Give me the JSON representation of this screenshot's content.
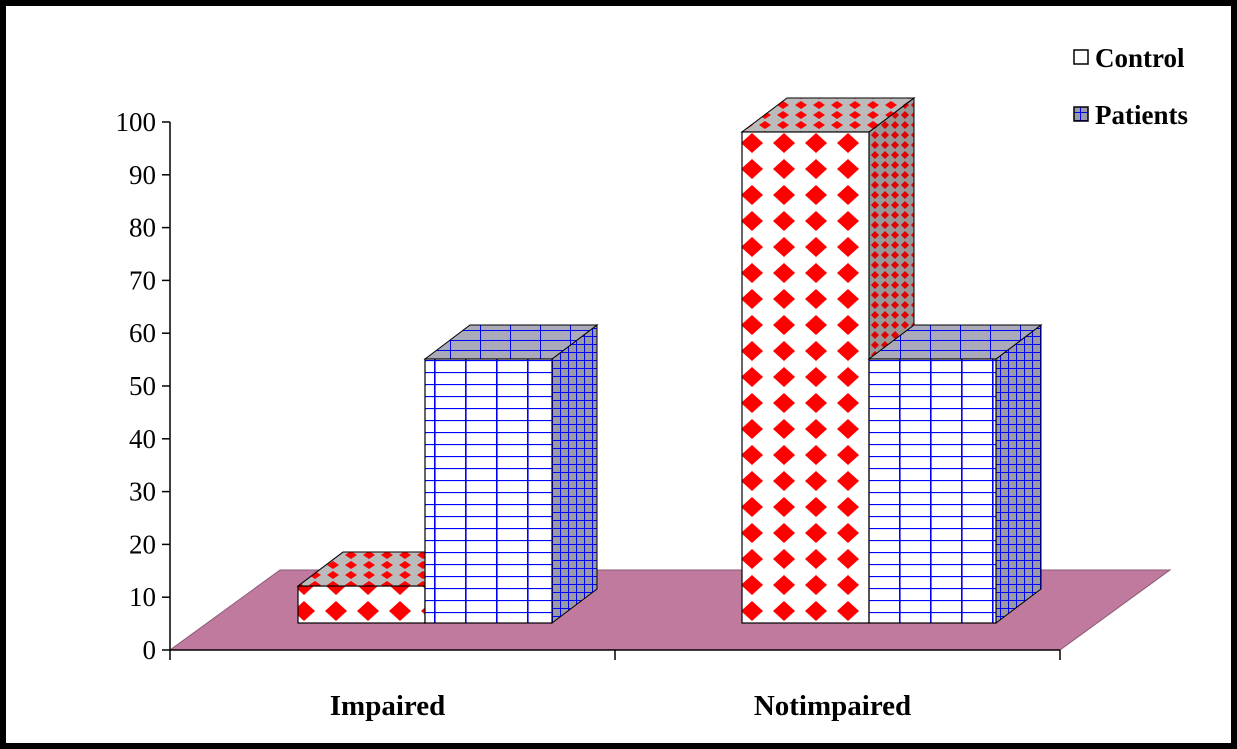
{
  "chart_data": {
    "type": "bar",
    "style": "3d-clustered-column",
    "categories": [
      "Impaired",
      "Notimpaired"
    ],
    "series": [
      {
        "name": "Control",
        "values": [
          7,
          93
        ],
        "color": "#ff0000",
        "pattern": "red-diamonds"
      },
      {
        "name": "Patients",
        "values": [
          50,
          50
        ],
        "color": "#0000ff",
        "pattern": "blue-grid"
      }
    ],
    "ylim": [
      0,
      100
    ],
    "yticks": [
      0,
      10,
      20,
      30,
      40,
      50,
      60,
      70,
      80,
      90,
      100
    ],
    "legend_position": "top-right",
    "floor_color": "#c07a9e",
    "grid": false
  }
}
